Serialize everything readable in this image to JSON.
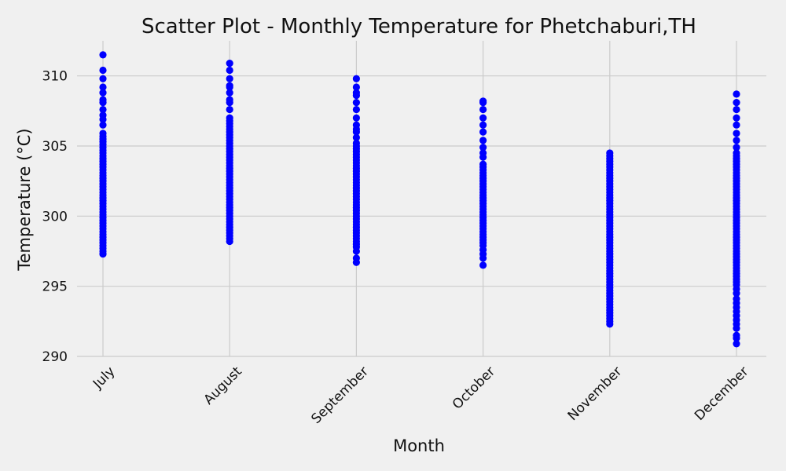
{
  "chart_data": {
    "type": "scatter",
    "title": "Scatter Plot - Monthly Temperature for Phetchaburi,TH",
    "xlabel": "Month",
    "ylabel": "Temperature (°C)",
    "categories": [
      "July",
      "August",
      "September",
      "October",
      "November",
      "December"
    ],
    "ylim": [
      290,
      312.5
    ],
    "yticks": [
      290,
      295,
      300,
      305,
      310
    ],
    "grid": true,
    "point_color": "#0000ff",
    "background_color": "#f0f0f0",
    "grid_color": "#cbcbcb",
    "series": [
      {
        "category": "July",
        "values": [
          297.3,
          297.5,
          297.7,
          297.9,
          298.1,
          298.3,
          298.5,
          298.7,
          298.9,
          299.1,
          299.3,
          299.5,
          299.7,
          299.9,
          300.1,
          300.3,
          300.5,
          300.7,
          300.9,
          301.1,
          301.3,
          301.5,
          301.7,
          301.9,
          302.1,
          302.3,
          302.5,
          302.7,
          302.9,
          303.1,
          303.3,
          303.5,
          303.7,
          303.9,
          304.1,
          304.3,
          304.5,
          304.7,
          304.9,
          305.1,
          305.3,
          305.5,
          305.7,
          305.9,
          306.5,
          306.9,
          307.2,
          307.6,
          308.1,
          308.3,
          308.8,
          309.2,
          309.8,
          310.4,
          311.5
        ]
      },
      {
        "category": "August",
        "values": [
          298.2,
          298.4,
          298.6,
          298.8,
          299.0,
          299.2,
          299.4,
          299.6,
          299.8,
          300.0,
          300.2,
          300.4,
          300.6,
          300.8,
          301.0,
          301.2,
          301.4,
          301.6,
          301.8,
          302.0,
          302.2,
          302.4,
          302.6,
          302.8,
          303.0,
          303.2,
          303.4,
          303.6,
          303.8,
          304.0,
          304.2,
          304.4,
          304.6,
          304.8,
          305.0,
          305.2,
          305.4,
          305.6,
          305.8,
          306.0,
          306.2,
          306.4,
          306.6,
          306.8,
          307.0,
          307.6,
          308.1,
          308.3,
          308.8,
          309.2,
          309.3,
          309.8,
          310.4,
          310.9
        ]
      },
      {
        "category": "September",
        "values": [
          296.7,
          297.0,
          297.5,
          297.8,
          298.0,
          298.2,
          298.4,
          298.6,
          298.8,
          299.0,
          299.2,
          299.4,
          299.6,
          299.8,
          300.0,
          300.2,
          300.4,
          300.6,
          300.8,
          301.0,
          301.2,
          301.4,
          301.6,
          301.8,
          302.0,
          302.2,
          302.4,
          302.6,
          302.8,
          303.0,
          303.2,
          303.4,
          303.6,
          303.8,
          304.0,
          304.2,
          304.4,
          304.6,
          304.8,
          305.0,
          305.2,
          305.6,
          306.0,
          306.2,
          306.5,
          307.0,
          307.6,
          308.1,
          308.6,
          308.8,
          309.2,
          309.8
        ]
      },
      {
        "category": "October",
        "values": [
          296.5,
          297.0,
          297.3,
          297.6,
          297.9,
          298.1,
          298.3,
          298.5,
          298.7,
          298.9,
          299.1,
          299.3,
          299.5,
          299.7,
          299.9,
          300.1,
          300.3,
          300.5,
          300.7,
          300.9,
          301.1,
          301.3,
          301.5,
          301.7,
          301.9,
          302.1,
          302.3,
          302.5,
          302.7,
          302.9,
          303.1,
          303.3,
          303.5,
          303.7,
          304.2,
          304.5,
          304.9,
          305.4,
          306.0,
          306.5,
          307.0,
          307.6,
          308.1,
          308.2
        ]
      },
      {
        "category": "November",
        "values": [
          292.3,
          292.5,
          292.7,
          292.9,
          293.1,
          293.3,
          293.5,
          293.7,
          293.9,
          294.1,
          294.3,
          294.5,
          294.7,
          294.9,
          295.1,
          295.3,
          295.5,
          295.7,
          295.9,
          296.1,
          296.3,
          296.5,
          296.7,
          296.9,
          297.1,
          297.3,
          297.5,
          297.7,
          297.9,
          298.1,
          298.3,
          298.5,
          298.7,
          298.9,
          299.1,
          299.3,
          299.5,
          299.7,
          299.9,
          300.1,
          300.3,
          300.5,
          300.7,
          300.9,
          301.1,
          301.3,
          301.5,
          301.7,
          301.9,
          302.1,
          302.3,
          302.5,
          302.7,
          302.9,
          303.1,
          303.3,
          303.5,
          303.7,
          303.9,
          304.1,
          304.3,
          304.5
        ]
      },
      {
        "category": "December",
        "values": [
          290.9,
          291.3,
          291.5,
          292.0,
          292.3,
          292.6,
          292.9,
          293.2,
          293.5,
          293.8,
          294.1,
          294.5,
          294.8,
          295.1,
          295.3,
          295.5,
          295.7,
          295.9,
          296.1,
          296.3,
          296.5,
          296.7,
          296.9,
          297.1,
          297.3,
          297.5,
          297.7,
          297.9,
          298.1,
          298.3,
          298.5,
          298.7,
          298.9,
          299.1,
          299.3,
          299.5,
          299.7,
          299.9,
          300.1,
          300.3,
          300.5,
          300.7,
          300.9,
          301.1,
          301.3,
          301.5,
          301.7,
          301.9,
          302.1,
          302.3,
          302.5,
          302.7,
          302.9,
          303.1,
          303.3,
          303.5,
          303.7,
          303.9,
          304.1,
          304.3,
          304.5,
          304.9,
          305.4,
          305.9,
          306.5,
          307.0,
          307.6,
          308.1,
          308.7
        ]
      }
    ]
  }
}
